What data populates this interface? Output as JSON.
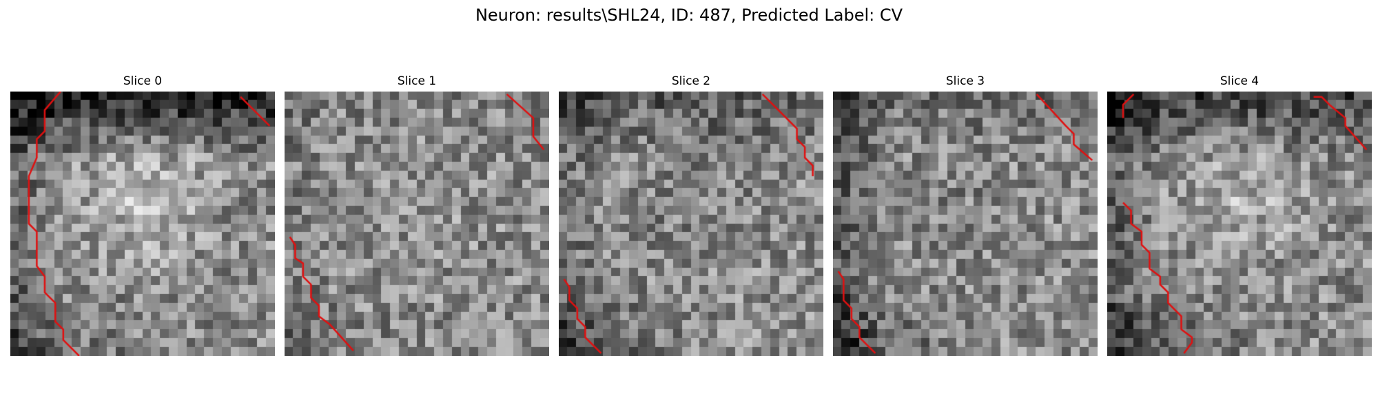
{
  "figure": {
    "suptitle": "Neuron: results\\SHL24, ID: 487, Predicted Label: CV"
  },
  "panels": [
    {
      "title": "Slice 0",
      "seed": 11,
      "darkTop": 0.55,
      "darkBottom": 0.35,
      "darkLeft": 0.25,
      "brightCenter": 0.55
    },
    {
      "title": "Slice 1",
      "seed": 23,
      "darkTop": 0.05,
      "darkBottom": 0.15,
      "darkLeft": 0.1,
      "brightCenter": 0.1
    },
    {
      "title": "Slice 2",
      "seed": 37,
      "darkTop": 0.25,
      "darkBottom": 0.45,
      "darkLeft": 0.2,
      "brightCenter": -0.15
    },
    {
      "title": "Slice 3",
      "seed": 53,
      "darkTop": 0.15,
      "darkBottom": 0.5,
      "darkLeft": 0.35,
      "brightCenter": -0.1
    },
    {
      "title": "Slice 4",
      "seed": 71,
      "darkTop": 0.4,
      "darkBottom": 0.55,
      "darkLeft": 0.3,
      "brightCenter": 0.4
    }
  ],
  "colors": {
    "contour": "#e01010"
  }
}
